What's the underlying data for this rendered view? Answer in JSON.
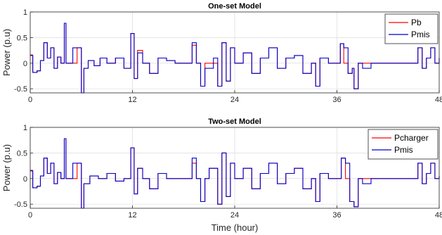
{
  "chart_data": [
    {
      "type": "line",
      "title": "One-set Model",
      "ylabel": "Power (p.u)",
      "xlabel": "",
      "xlim": [
        0,
        48
      ],
      "ylim": [
        -0.58,
        1
      ],
      "xticks": [
        0,
        12,
        24,
        36,
        48
      ],
      "yticks": [
        -0.5,
        0,
        0.5,
        1
      ],
      "xtick_labels": [
        "0",
        "12",
        "24",
        "36",
        "48"
      ],
      "ytick_labels": [
        "-0.5",
        "0",
        "0.5",
        "1"
      ],
      "grid": true,
      "legend": "top-right",
      "series": [
        {
          "name": "Pb",
          "color": "#ff0000",
          "points": [
            [
              0,
              0.16
            ],
            [
              0.3,
              -0.18
            ],
            [
              0.8,
              -0.15
            ],
            [
              1.2,
              0.05
            ],
            [
              1.6,
              0.4
            ],
            [
              2.0,
              0.1
            ],
            [
              2.4,
              0.3
            ],
            [
              2.8,
              -0.1
            ],
            [
              3.2,
              0.12
            ],
            [
              3.6,
              0.0
            ],
            [
              4.0,
              0.78
            ],
            [
              4.2,
              0.0
            ],
            [
              5.2,
              0.0
            ],
            [
              5.5,
              0.3
            ],
            [
              6.0,
              -0.58
            ],
            [
              6.3,
              -0.1
            ],
            [
              6.8,
              0.05
            ],
            [
              7.5,
              -0.05
            ],
            [
              8.2,
              0.1
            ],
            [
              9.0,
              0.0
            ],
            [
              10.0,
              0.1
            ],
            [
              11.0,
              -0.1
            ],
            [
              11.8,
              0.58
            ],
            [
              12.2,
              -0.3
            ],
            [
              12.6,
              0.25
            ],
            [
              13.2,
              0.0
            ],
            [
              14.0,
              -0.2
            ],
            [
              15.0,
              0.1
            ],
            [
              16.0,
              0.05
            ],
            [
              17.0,
              0.0
            ],
            [
              18.5,
              0.0
            ],
            [
              19.0,
              0.35
            ],
            [
              19.5,
              0.0
            ],
            [
              20.0,
              -0.45
            ],
            [
              20.5,
              0.0
            ],
            [
              21.5,
              0.0
            ],
            [
              22.0,
              -0.45
            ],
            [
              22.5,
              0.4
            ],
            [
              23.0,
              -0.35
            ],
            [
              23.5,
              0.3
            ],
            [
              24.0,
              0.0
            ],
            [
              25.0,
              0.2
            ],
            [
              26.0,
              -0.2
            ],
            [
              27.0,
              0.1
            ],
            [
              28.0,
              0.3
            ],
            [
              29.0,
              -0.1
            ],
            [
              30.0,
              0.1
            ],
            [
              31.0,
              0.15
            ],
            [
              32.0,
              -0.2
            ],
            [
              33.0,
              0.0
            ],
            [
              33.5,
              -0.45
            ],
            [
              34.0,
              0.1
            ],
            [
              35.0,
              0.0
            ],
            [
              36.0,
              0.0
            ],
            [
              36.4,
              0.38
            ],
            [
              36.8,
              0.0
            ],
            [
              37.3,
              -0.2
            ],
            [
              37.8,
              -0.1
            ],
            [
              38.0,
              -0.5
            ],
            [
              38.5,
              0.0
            ],
            [
              39.5,
              0.0
            ],
            [
              45.0,
              0.0
            ],
            [
              45.5,
              0.3
            ],
            [
              46.0,
              -0.1
            ],
            [
              46.5,
              0.1
            ],
            [
              47.0,
              0.3
            ],
            [
              47.5,
              0.0
            ],
            [
              48.0,
              0.1
            ]
          ]
        },
        {
          "name": "Pmis",
          "color": "#0000cd",
          "points": [
            [
              0,
              0.15
            ],
            [
              0.3,
              -0.18
            ],
            [
              0.8,
              -0.15
            ],
            [
              1.2,
              0.05
            ],
            [
              1.6,
              0.4
            ],
            [
              2.0,
              0.1
            ],
            [
              2.4,
              0.3
            ],
            [
              2.8,
              -0.1
            ],
            [
              3.2,
              0.12
            ],
            [
              3.6,
              0.0
            ],
            [
              4.0,
              0.78
            ],
            [
              4.2,
              0.0
            ],
            [
              4.6,
              0.0
            ],
            [
              5.0,
              0.3
            ],
            [
              5.6,
              0.3
            ],
            [
              6.0,
              -0.58
            ],
            [
              6.3,
              -0.1
            ],
            [
              6.8,
              0.05
            ],
            [
              7.5,
              -0.05
            ],
            [
              8.2,
              0.1
            ],
            [
              9.0,
              0.0
            ],
            [
              10.0,
              0.1
            ],
            [
              11.0,
              -0.1
            ],
            [
              11.8,
              0.58
            ],
            [
              12.2,
              -0.3
            ],
            [
              12.6,
              0.2
            ],
            [
              13.2,
              0.0
            ],
            [
              14.0,
              -0.2
            ],
            [
              15.0,
              0.1
            ],
            [
              16.0,
              0.05
            ],
            [
              17.0,
              0.0
            ],
            [
              18.5,
              0.0
            ],
            [
              19.0,
              0.4
            ],
            [
              19.5,
              0.0
            ],
            [
              20.0,
              -0.45
            ],
            [
              20.5,
              -0.1
            ],
            [
              21.5,
              0.1
            ],
            [
              22.0,
              -0.45
            ],
            [
              22.5,
              0.4
            ],
            [
              23.0,
              -0.35
            ],
            [
              23.5,
              0.3
            ],
            [
              24.0,
              0.0
            ],
            [
              25.0,
              0.2
            ],
            [
              26.0,
              -0.2
            ],
            [
              27.0,
              0.1
            ],
            [
              28.0,
              0.3
            ],
            [
              29.0,
              -0.1
            ],
            [
              30.0,
              0.1
            ],
            [
              31.0,
              0.15
            ],
            [
              32.0,
              -0.2
            ],
            [
              33.0,
              0.0
            ],
            [
              33.5,
              -0.45
            ],
            [
              34.0,
              0.1
            ],
            [
              35.0,
              0.0
            ],
            [
              36.0,
              0.0
            ],
            [
              36.4,
              0.38
            ],
            [
              36.8,
              0.3
            ],
            [
              37.3,
              -0.2
            ],
            [
              37.8,
              -0.1
            ],
            [
              38.0,
              -0.5
            ],
            [
              38.5,
              0.0
            ],
            [
              39.0,
              -0.1
            ],
            [
              40.0,
              0.0
            ],
            [
              45.0,
              0.0
            ],
            [
              45.5,
              0.3
            ],
            [
              46.0,
              -0.1
            ],
            [
              46.5,
              0.1
            ],
            [
              47.0,
              0.3
            ],
            [
              47.5,
              0.0
            ],
            [
              48.0,
              0.1
            ]
          ]
        }
      ]
    },
    {
      "type": "line",
      "title": "Two-set Model",
      "ylabel": "Power (p.u)",
      "xlabel": "Time (hour)",
      "xlim": [
        0,
        48
      ],
      "ylim": [
        -0.58,
        1
      ],
      "xticks": [
        0,
        12,
        24,
        36,
        48
      ],
      "yticks": [
        -0.5,
        0,
        0.5,
        1
      ],
      "xtick_labels": [
        "0",
        "12",
        "24",
        "36",
        "48"
      ],
      "ytick_labels": [
        "-0.5",
        "0",
        "0.5",
        "1"
      ],
      "grid": true,
      "legend": "top-right",
      "series": [
        {
          "name": "Pcharger",
          "color": "#ff0000",
          "points": [
            [
              0,
              0.16
            ],
            [
              0.3,
              -0.18
            ],
            [
              0.8,
              -0.15
            ],
            [
              1.2,
              0.05
            ],
            [
              1.6,
              0.4
            ],
            [
              2.0,
              0.1
            ],
            [
              2.4,
              0.3
            ],
            [
              2.8,
              -0.1
            ],
            [
              3.2,
              0.12
            ],
            [
              3.6,
              0.0
            ],
            [
              4.0,
              0.78
            ],
            [
              4.2,
              0.0
            ],
            [
              5.0,
              0.0
            ],
            [
              5.5,
              0.3
            ],
            [
              6.0,
              -0.58
            ],
            [
              6.3,
              -0.1
            ],
            [
              7.0,
              0.05
            ],
            [
              8.0,
              0.0
            ],
            [
              9.0,
              0.1
            ],
            [
              10.0,
              -0.05
            ],
            [
              11.0,
              0.0
            ],
            [
              11.8,
              0.6
            ],
            [
              12.2,
              -0.3
            ],
            [
              12.6,
              0.2
            ],
            [
              13.2,
              0.0
            ],
            [
              14.0,
              -0.2
            ],
            [
              15.0,
              0.1
            ],
            [
              16.0,
              0.0
            ],
            [
              18.5,
              0.0
            ],
            [
              19.0,
              0.3
            ],
            [
              19.5,
              0.0
            ],
            [
              20.0,
              -0.45
            ],
            [
              20.5,
              0.0
            ],
            [
              21.0,
              0.2
            ],
            [
              22.0,
              -0.5
            ],
            [
              22.5,
              0.5
            ],
            [
              23.0,
              -0.35
            ],
            [
              23.5,
              0.3
            ],
            [
              24.0,
              0.0
            ],
            [
              25.0,
              0.2
            ],
            [
              26.0,
              -0.2
            ],
            [
              27.0,
              0.1
            ],
            [
              28.0,
              0.3
            ],
            [
              29.0,
              -0.1
            ],
            [
              30.0,
              0.1
            ],
            [
              31.0,
              0.2
            ],
            [
              32.0,
              -0.2
            ],
            [
              33.0,
              0.0
            ],
            [
              33.5,
              -0.45
            ],
            [
              34.0,
              0.1
            ],
            [
              35.0,
              0.0
            ],
            [
              36.0,
              0.0
            ],
            [
              36.5,
              0.4
            ],
            [
              37.0,
              0.0
            ],
            [
              37.5,
              -0.45
            ],
            [
              38.0,
              -0.55
            ],
            [
              38.5,
              0.0
            ],
            [
              39.5,
              0.0
            ],
            [
              45.0,
              0.0
            ],
            [
              45.5,
              0.3
            ],
            [
              46.0,
              -0.1
            ],
            [
              46.5,
              0.1
            ],
            [
              47.0,
              0.3
            ],
            [
              47.5,
              0.0
            ],
            [
              48.0,
              0.05
            ]
          ]
        },
        {
          "name": "Pmis",
          "color": "#0000cd",
          "points": [
            [
              0,
              0.15
            ],
            [
              0.3,
              -0.18
            ],
            [
              0.8,
              -0.15
            ],
            [
              1.2,
              0.05
            ],
            [
              1.6,
              0.4
            ],
            [
              2.0,
              0.1
            ],
            [
              2.4,
              0.3
            ],
            [
              2.8,
              -0.1
            ],
            [
              3.2,
              0.12
            ],
            [
              3.6,
              0.0
            ],
            [
              4.0,
              0.78
            ],
            [
              4.2,
              0.0
            ],
            [
              4.6,
              0.0
            ],
            [
              5.0,
              0.3
            ],
            [
              5.6,
              0.3
            ],
            [
              6.0,
              -0.58
            ],
            [
              6.3,
              -0.1
            ],
            [
              7.0,
              0.05
            ],
            [
              8.0,
              0.0
            ],
            [
              9.0,
              0.1
            ],
            [
              10.0,
              -0.05
            ],
            [
              11.0,
              0.0
            ],
            [
              11.8,
              0.6
            ],
            [
              12.2,
              -0.3
            ],
            [
              12.6,
              0.2
            ],
            [
              13.2,
              0.0
            ],
            [
              14.0,
              -0.2
            ],
            [
              15.0,
              0.1
            ],
            [
              16.0,
              0.0
            ],
            [
              18.5,
              0.0
            ],
            [
              19.0,
              0.4
            ],
            [
              19.5,
              0.0
            ],
            [
              20.0,
              -0.45
            ],
            [
              20.5,
              0.0
            ],
            [
              21.0,
              0.2
            ],
            [
              22.0,
              -0.5
            ],
            [
              22.5,
              0.5
            ],
            [
              23.0,
              -0.35
            ],
            [
              23.5,
              0.3
            ],
            [
              24.0,
              0.0
            ],
            [
              25.0,
              0.2
            ],
            [
              26.0,
              -0.2
            ],
            [
              27.0,
              0.1
            ],
            [
              28.0,
              0.3
            ],
            [
              29.0,
              -0.1
            ],
            [
              30.0,
              0.1
            ],
            [
              31.0,
              0.2
            ],
            [
              32.0,
              -0.2
            ],
            [
              33.0,
              0.0
            ],
            [
              33.5,
              -0.45
            ],
            [
              34.0,
              0.1
            ],
            [
              35.0,
              0.0
            ],
            [
              36.0,
              0.0
            ],
            [
              36.5,
              0.4
            ],
            [
              37.0,
              0.3
            ],
            [
              37.5,
              -0.45
            ],
            [
              38.0,
              -0.55
            ],
            [
              38.5,
              0.0
            ],
            [
              39.0,
              -0.1
            ],
            [
              40.0,
              0.0
            ],
            [
              45.0,
              0.0
            ],
            [
              45.5,
              0.3
            ],
            [
              46.0,
              -0.1
            ],
            [
              46.5,
              0.1
            ],
            [
              47.0,
              0.3
            ],
            [
              47.5,
              0.0
            ],
            [
              48.0,
              0.05
            ]
          ]
        }
      ]
    }
  ]
}
